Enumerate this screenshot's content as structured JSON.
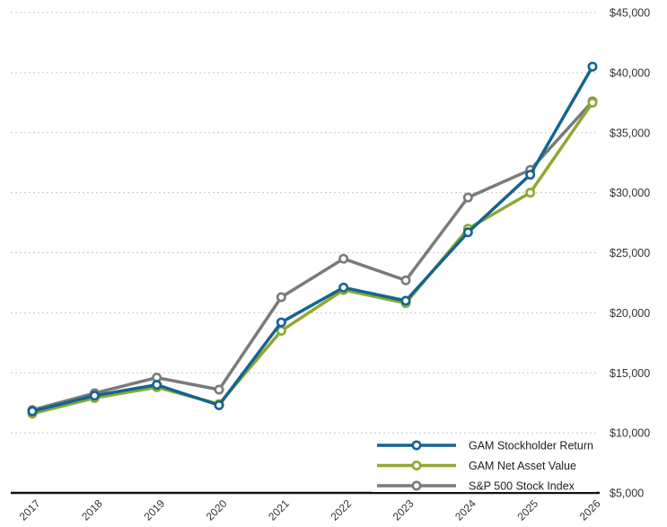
{
  "chart_data": {
    "type": "line",
    "title": "",
    "xlabel": "",
    "ylabel": "",
    "categories": [
      "2017",
      "2018",
      "2019",
      "2020",
      "2021",
      "2022",
      "2023",
      "2024",
      "2025",
      "2026"
    ],
    "y_ticks": [
      "$5,000",
      "$10,000",
      "$15,000",
      "$20,000",
      "$25,000",
      "$30,000",
      "$35,000",
      "$40,000",
      "$45,000"
    ],
    "ylim": [
      5000,
      45000
    ],
    "grid": "horizontal dotted",
    "legend_position": "bottom-right",
    "y_axis_side": "right",
    "series": [
      {
        "name": "GAM Stockholder Return",
        "color": "#14648f",
        "values": [
          11800,
          13100,
          14000,
          12300,
          19200,
          22100,
          21000,
          26700,
          31500,
          40500
        ]
      },
      {
        "name": "GAM Net Asset Value",
        "color": "#8ea832",
        "values": [
          11600,
          12900,
          13800,
          12400,
          18500,
          21900,
          20800,
          27000,
          30000,
          37500
        ]
      },
      {
        "name": "S&P 500 Stock Index",
        "color": "#7a7a7a",
        "values": [
          11900,
          13300,
          14600,
          13600,
          21300,
          24500,
          22700,
          29600,
          31900,
          37600
        ]
      }
    ]
  }
}
